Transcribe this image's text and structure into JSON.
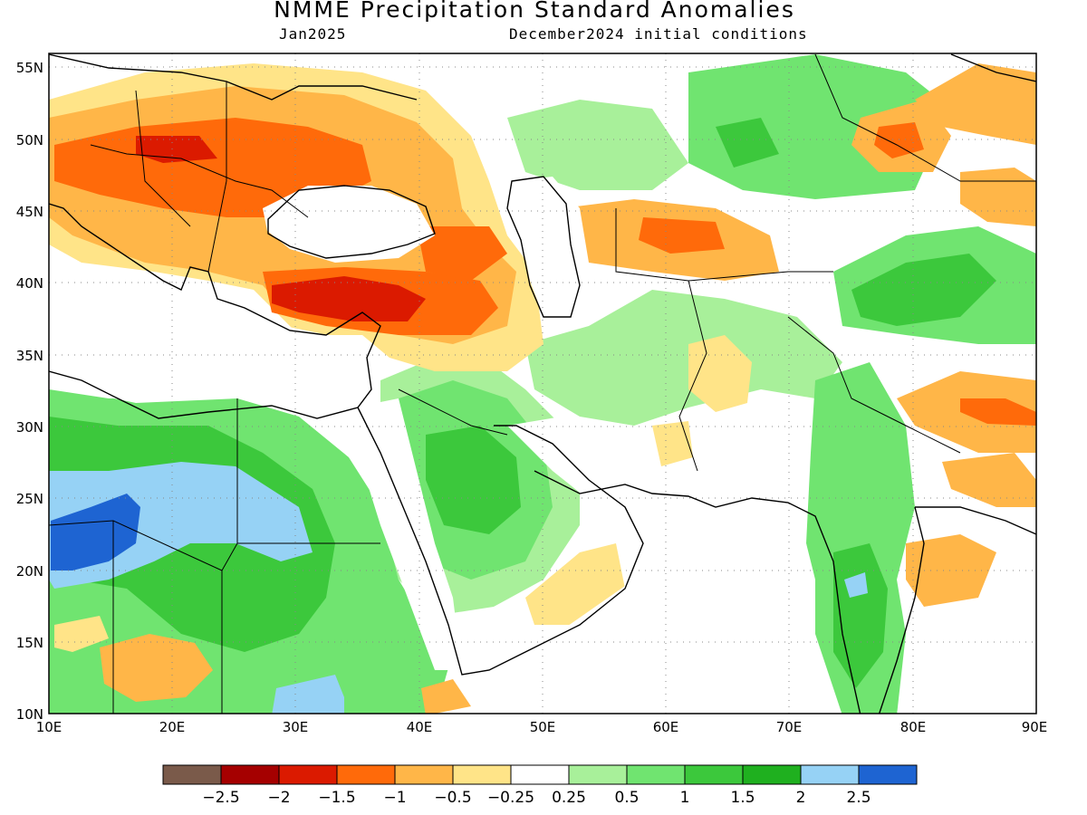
{
  "header": {
    "title": "NMME Precipitation Standard Anomalies",
    "month": "Jan2025",
    "init": "December2024 initial conditions"
  },
  "axes": {
    "lon_labels": [
      "10E",
      "20E",
      "30E",
      "40E",
      "50E",
      "60E",
      "70E",
      "80E",
      "90E"
    ],
    "lat_labels": [
      "55N",
      "50N",
      "45N",
      "40N",
      "35N",
      "30N",
      "25N",
      "20N",
      "15N",
      "10N"
    ],
    "lon_range": [
      10,
      90
    ],
    "lat_range": [
      10,
      56
    ],
    "grid": "dotted"
  },
  "colorbar": {
    "colors": [
      "#7a5a4a",
      "#a50000",
      "#db1a00",
      "#ff6a0a",
      "#ffb648",
      "#ffe488",
      "#ffffff",
      "#a8f09a",
      "#70e470",
      "#3cc83c",
      "#1fb01f",
      "#96d2f5",
      "#1e64d2"
    ],
    "labels": [
      "−2.5",
      "−2",
      "−1.5",
      "−1",
      "−0.5",
      "−0.25",
      "0.25",
      "0.5",
      "1",
      "1.5",
      "2",
      "2.5"
    ]
  },
  "palette": {
    "dry_extreme": "#db1a00",
    "dry_strong": "#ff6a0a",
    "dry": "#ffb648",
    "dry_weak": "#ffe488",
    "wet_weak": "#a8f09a",
    "wet": "#70e470",
    "wet_strong": "#3cc83c",
    "wet_very": "#1fb01f",
    "wet_extreme_light": "#96d2f5",
    "wet_extreme": "#1e64d2"
  }
}
